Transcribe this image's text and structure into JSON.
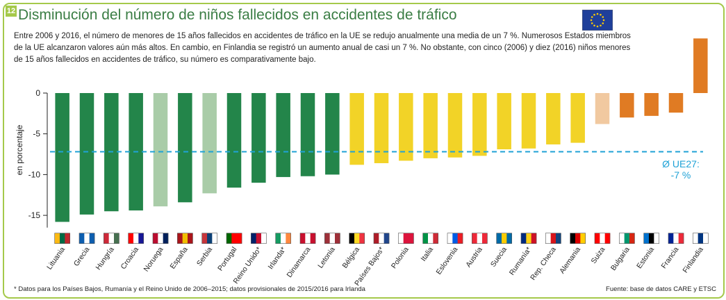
{
  "header": {
    "badge": "12",
    "title": "Disminución del número de niños fallecidos en accidentes de tráfico",
    "subtitle": "Entre 2006 y 2016, el número de menores de 15 años fallecidos en accidentes de tráfico en la UE se redujo anualmente una media de un 7 %. Numerosos Estados miembros de la UE alcanzaron valores aún más altos. En cambio, en Finlandia se registró un aumento anual de casi un 7 %. No obstante, con cinco (2006) y diez (2016) niños menores de 15 años fallecidos en accidentes de tráfico, su número es comparativamente bajo.",
    "flag_icon": "eu-flag-icon"
  },
  "footer": {
    "footnote": "* Datos para los Países Bajos, Rumanía y el Reino Unido de 2006–2015; datos provisionales de 2015/2016 para Irlanda",
    "source": "Fuente: base de datos CARE y ETSC"
  },
  "chart_data": {
    "type": "bar",
    "ylabel": "en porcentaje",
    "ylim": [
      -16.5,
      7
    ],
    "yticks": [
      0,
      -5,
      -10,
      -15
    ],
    "grid": false,
    "average": {
      "value": -7.2,
      "label_line1": "Ø UE27:",
      "label_line2": "-7 %",
      "color": "#1fa2d6"
    },
    "categories": [
      "Lituania",
      "Grecia",
      "Hungría",
      "Croacia",
      "Noruega",
      "España",
      "Serbia",
      "Portugal",
      "Reino Unido*",
      "Irlanda*",
      "Dinamarca",
      "Letonia",
      "Bélgica",
      "Países Bajos*",
      "Polonia",
      "Italia",
      "Eslovenia",
      "Austria",
      "Suecia",
      "Rumanía*",
      "Rep. Checa",
      "Alemania",
      "Suiza",
      "Bulgaria",
      "Estonia",
      "Francia",
      "Finlandia"
    ],
    "values": [
      -15.8,
      -14.9,
      -14.5,
      -14.4,
      -13.9,
      -13.4,
      -12.3,
      -11.6,
      -11.0,
      -10.3,
      -10.2,
      -10.0,
      -8.8,
      -8.6,
      -8.3,
      -8.0,
      -7.9,
      -7.7,
      -6.9,
      -6.8,
      -6.3,
      -6.1,
      -3.8,
      -3.0,
      -2.8,
      -2.4,
      6.7
    ],
    "colors": [
      "#23854a",
      "#23854a",
      "#23854a",
      "#23854a",
      "#a9cca8",
      "#23854a",
      "#a9cca8",
      "#23854a",
      "#23854a",
      "#23854a",
      "#23854a",
      "#23854a",
      "#f2d327",
      "#f2d327",
      "#f2d327",
      "#f2d327",
      "#f2d327",
      "#f2d327",
      "#f2d327",
      "#f2d327",
      "#f2d327",
      "#f2d327",
      "#f1c9a0",
      "#e07b23",
      "#e07b23",
      "#e07b23",
      "#e07b23"
    ],
    "flags": [
      [
        "#fdb913",
        "#006a44",
        "#c1272d"
      ],
      [
        "#0d5eaf",
        "#ffffff",
        "#0d5eaf"
      ],
      [
        "#ce2939",
        "#ffffff",
        "#477050"
      ],
      [
        "#ff0000",
        "#ffffff",
        "#171796"
      ],
      [
        "#ba0c2f",
        "#ffffff",
        "#00205b"
      ],
      [
        "#aa151b",
        "#f1bf00",
        "#aa151b"
      ],
      [
        "#c6363c",
        "#0c4076",
        "#ffffff"
      ],
      [
        "#006600",
        "#ff0000",
        "#ff0000"
      ],
      [
        "#012169",
        "#c8102e",
        "#ffffff"
      ],
      [
        "#169b62",
        "#ffffff",
        "#ff883e"
      ],
      [
        "#c8102e",
        "#ffffff",
        "#c8102e"
      ],
      [
        "#9e3039",
        "#ffffff",
        "#9e3039"
      ],
      [
        "#000000",
        "#fdda24",
        "#ef3340"
      ],
      [
        "#ae1c28",
        "#ffffff",
        "#21468b"
      ],
      [
        "#ffffff",
        "#dc143c",
        "#dc143c"
      ],
      [
        "#009246",
        "#ffffff",
        "#ce2b37"
      ],
      [
        "#ffffff",
        "#005ce5",
        "#ed1c24"
      ],
      [
        "#ed2939",
        "#ffffff",
        "#ed2939"
      ],
      [
        "#006aa7",
        "#fecc00",
        "#006aa7"
      ],
      [
        "#002b7f",
        "#fcd116",
        "#ce1126"
      ],
      [
        "#ffffff",
        "#d7141a",
        "#11457e"
      ],
      [
        "#000000",
        "#dd0000",
        "#ffce00"
      ],
      [
        "#ff0000",
        "#ffffff",
        "#ff0000"
      ],
      [
        "#ffffff",
        "#00966e",
        "#d62612"
      ],
      [
        "#0072ce",
        "#000000",
        "#ffffff"
      ],
      [
        "#002395",
        "#ffffff",
        "#ed2939"
      ],
      [
        "#ffffff",
        "#003580",
        "#ffffff"
      ]
    ]
  }
}
